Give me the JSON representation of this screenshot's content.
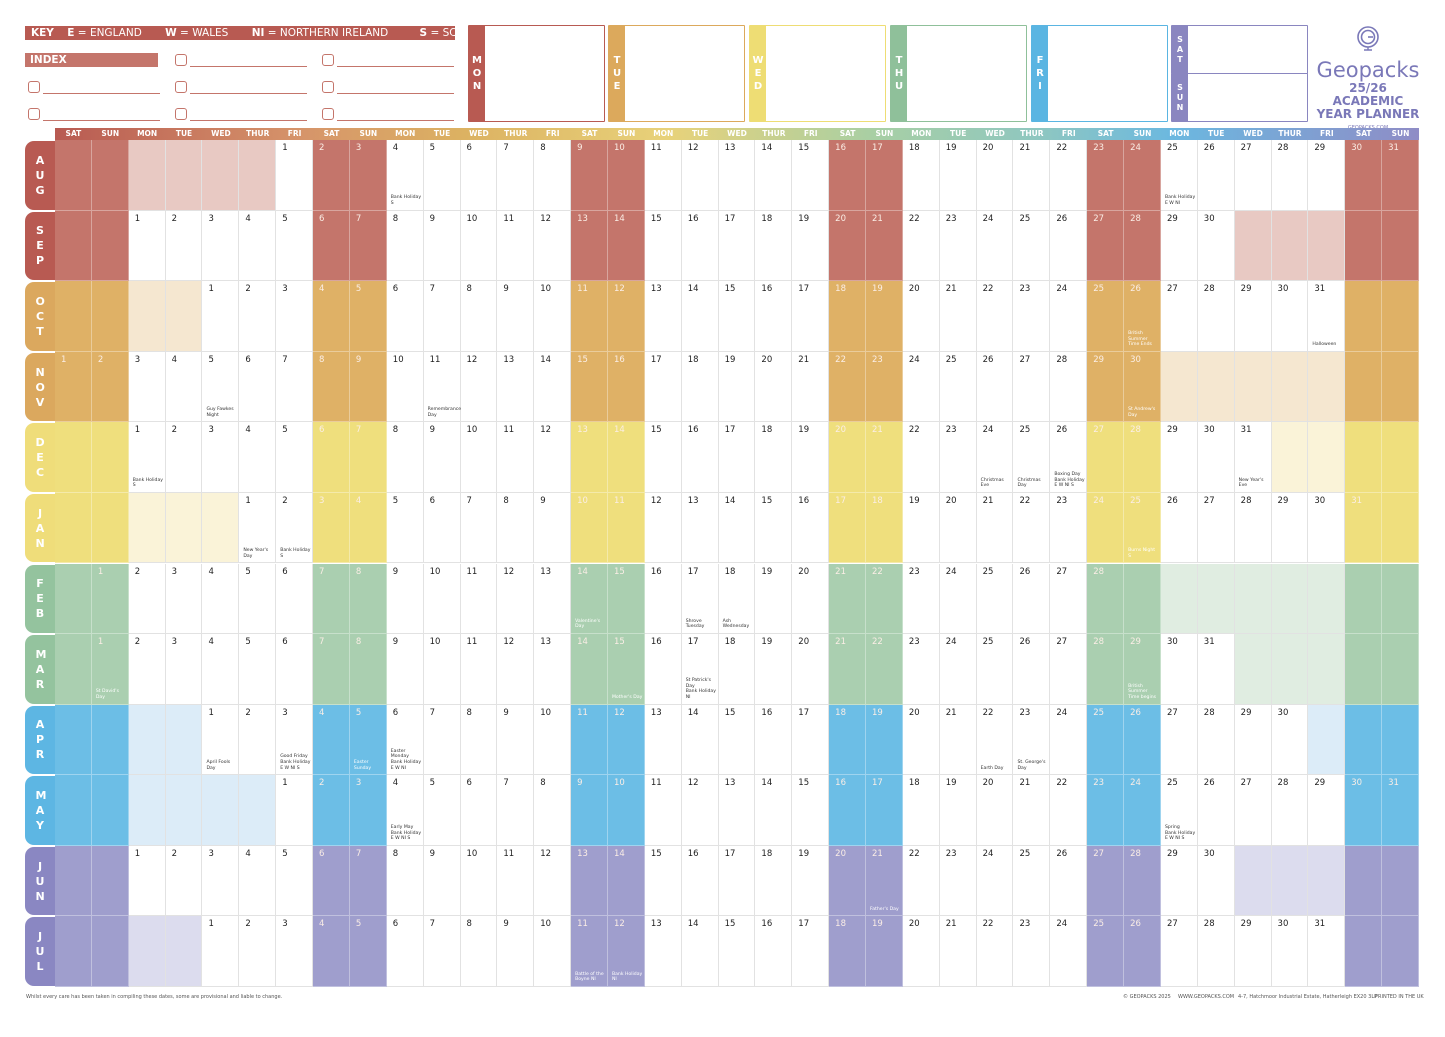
{
  "key": {
    "label": "KEY",
    "items": [
      {
        "code": "E",
        "name": "ENGLAND"
      },
      {
        "code": "W",
        "name": "WALES"
      },
      {
        "code": "NI",
        "name": "NORTHERN IRELAND"
      },
      {
        "code": "S",
        "name": "SCOTLAND"
      }
    ]
  },
  "index": {
    "label": "INDEX",
    "checkbox_count": 8
  },
  "day_boxes": [
    {
      "label": "MON",
      "color": "#b85a52"
    },
    {
      "label": "TUE",
      "color": "#dca95c"
    },
    {
      "label": "WED",
      "color": "#eedd74"
    },
    {
      "label": "THU",
      "color": "#8fc09a"
    },
    {
      "label": "FRI",
      "color": "#5ab5e2"
    },
    {
      "label": "SAT",
      "color": "#8a86c0"
    },
    {
      "label": "SUN",
      "color": "#8a86c0"
    }
  ],
  "logo": {
    "brand": "Geopacks",
    "title1": "25/26 ACADEMIC",
    "title2": "YEAR PLANNER",
    "url": "GEOPACKS.COM",
    "color": "#7a78b8"
  },
  "weekday_headers": [
    "SAT",
    "SUN",
    "MON",
    "TUE",
    "WED",
    "THUR",
    "FRI"
  ],
  "palettes": {
    "red": {
      "tab": "#b85a52",
      "weekend": "#c4756b",
      "tint": "#e8c9c3"
    },
    "orange": {
      "tab": "#dba85e",
      "weekend": "#dfb166",
      "tint": "#f5e7d0"
    },
    "yellow": {
      "tab": "#efdd7a",
      "weekend": "#efdf7d",
      "tint": "#faf3d8"
    },
    "green": {
      "tab": "#94c39e",
      "weekend": "#aacfb0",
      "tint": "#e0ede1"
    },
    "blue": {
      "tab": "#5db6e3",
      "weekend": "#6cbee6",
      "tint": "#dcecf8"
    },
    "purple": {
      "tab": "#8a87c2",
      "weekend": "#9f9ecd",
      "tint": "#dcdcee"
    }
  },
  "months": [
    {
      "label": "AUG",
      "start": 6,
      "days": 31,
      "palette": "red",
      "events": {
        "4": "Bank Holiday\nS",
        "25": "Bank Holiday\nE W NI"
      }
    },
    {
      "label": "SEP",
      "start": 2,
      "days": 30,
      "palette": "red",
      "events": {}
    },
    {
      "label": "OCT",
      "start": 4,
      "days": 31,
      "palette": "orange",
      "events": {
        "26": "British\nSummer\nTime Ends",
        "31": "Halloween"
      }
    },
    {
      "label": "NOV",
      "start": 0,
      "days": 30,
      "palette": "orange",
      "events": {
        "5": "Guy Fawkes\nNight",
        "11": "Remembrance\nDay",
        "30": "St Andrew's Day"
      }
    },
    {
      "label": "DEC",
      "start": 2,
      "days": 31,
      "palette": "yellow",
      "events": {
        "1": "Bank Holiday\nS",
        "24": "Christmas Eve",
        "25": "Christmas Day",
        "26": "Boxing Day\nBank Holiday\nE W NI S",
        "31": "New Year's Eve"
      }
    },
    {
      "label": "JAN",
      "start": 5,
      "days": 31,
      "palette": "yellow",
      "events": {
        "1": "New Year's Day",
        "2": "Bank Holiday\nS",
        "25": "Burns Night\nS"
      }
    },
    {
      "label": "FEB",
      "start": 1,
      "days": 28,
      "palette": "green",
      "events": {
        "14": "Valentine's Day",
        "17": "Shrove Tuesday",
        "18": "Ash Wednesday"
      }
    },
    {
      "label": "MAR",
      "start": 1,
      "days": 31,
      "palette": "green",
      "events": {
        "1": "St David's Day",
        "15": "Mother's Day",
        "17": "St Patrick's Day\nBank Holiday\nNI",
        "29": "British Summer\nTime begins"
      }
    },
    {
      "label": "APR",
      "start": 4,
      "days": 30,
      "palette": "blue",
      "events": {
        "1": "April Fools Day",
        "3": "Good Friday\nBank Holiday\nE W NI S",
        "5": "Easter Sunday",
        "6": "Easter Monday\nBank Holiday\nE W NI",
        "22": "Earth Day",
        "23": "St. George's\nDay"
      }
    },
    {
      "label": "MAY",
      "start": 6,
      "days": 31,
      "palette": "blue",
      "events": {
        "4": "Early May\nBank Holiday\nE W NI S",
        "25": "Spring\nBank Holiday\nE W NI S"
      }
    },
    {
      "label": "JUN",
      "start": 2,
      "days": 30,
      "palette": "purple",
      "events": {
        "21": "Father's Day"
      }
    },
    {
      "label": "JUL",
      "start": 4,
      "days": 31,
      "palette": "purple",
      "events": {
        "11": "Battle of the\nBoyne NI",
        "12": "Bank Holiday\nNI"
      }
    }
  ],
  "footer": {
    "disclaimer": "Whilst every care has been taken in compiling these dates, some are provisional and liable to change.",
    "copyright": "© GEOPACKS 2025",
    "website": "WWW.GEOPACKS.COM",
    "address": "4-7, Hatchmoor Industrial Estate, Hatherleigh EX20 3LP",
    "printed": "PRINTED IN THE UK"
  }
}
